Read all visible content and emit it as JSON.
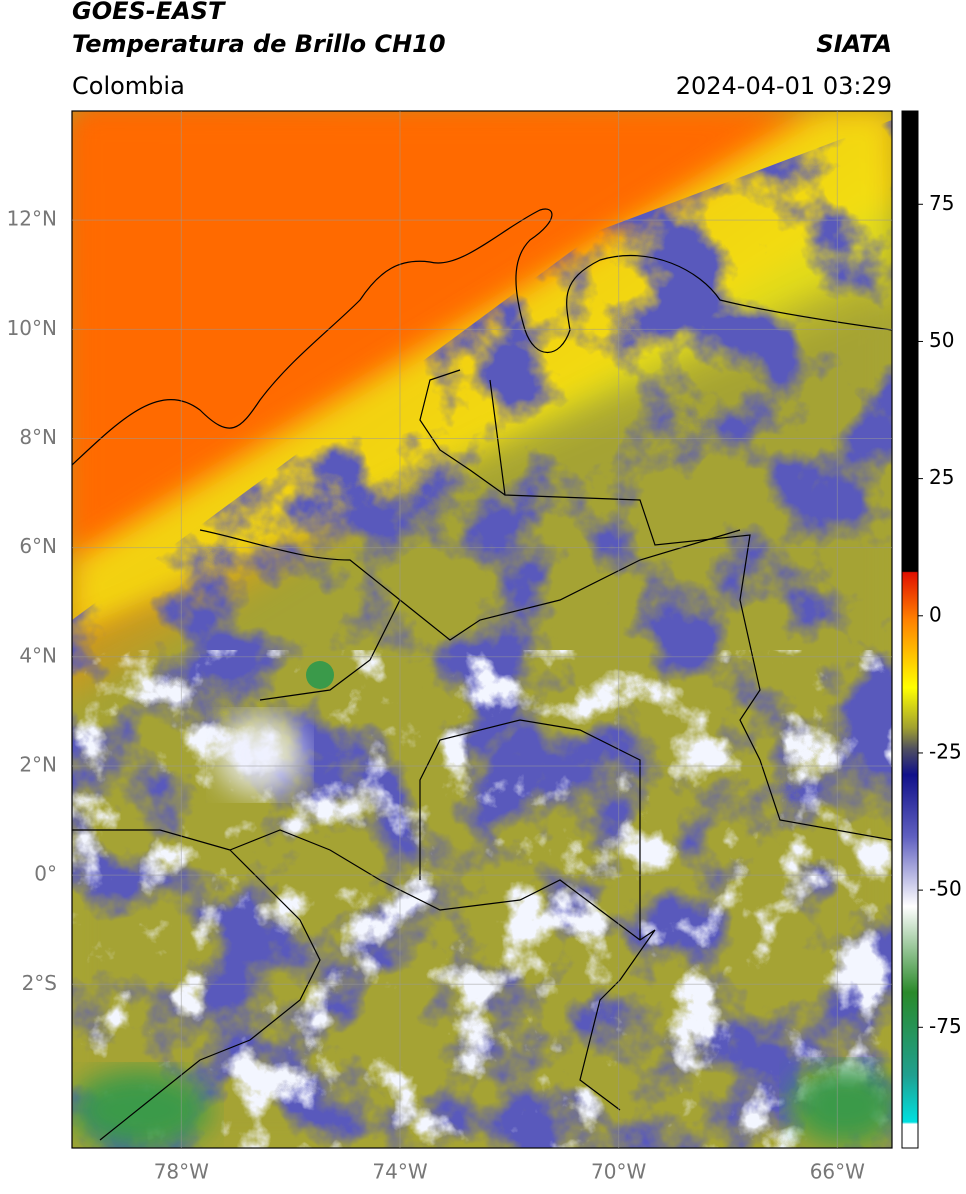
{
  "header": {
    "satellite": "GOES-EAST",
    "product": "Temperatura de Brillo CH10",
    "agency": "SIATA",
    "region": "Colombia",
    "datetime": "2024-04-01 03:29"
  },
  "map": {
    "xlim": [
      -80,
      -65
    ],
    "ylim": [
      -5,
      14
    ],
    "xticks": [
      {
        "value": -78,
        "label": "78°W"
      },
      {
        "value": -74,
        "label": "74°W"
      },
      {
        "value": -70,
        "label": "70°W"
      },
      {
        "value": -66,
        "label": "66°W"
      }
    ],
    "yticks": [
      {
        "value": 12,
        "label": "12°N"
      },
      {
        "value": 10,
        "label": "10°N"
      },
      {
        "value": 8,
        "label": "8°N"
      },
      {
        "value": 6,
        "label": "6°N"
      },
      {
        "value": 4,
        "label": "4°N"
      },
      {
        "value": 2,
        "label": "2°N"
      },
      {
        "value": 0,
        "label": "0°"
      },
      {
        "value": -2,
        "label": "2°S"
      }
    ],
    "grid": true
  },
  "colorbar": {
    "lim": [
      -97,
      92
    ],
    "ticks": [
      75,
      50,
      25,
      0,
      -25,
      -50,
      -75
    ]
  }
}
